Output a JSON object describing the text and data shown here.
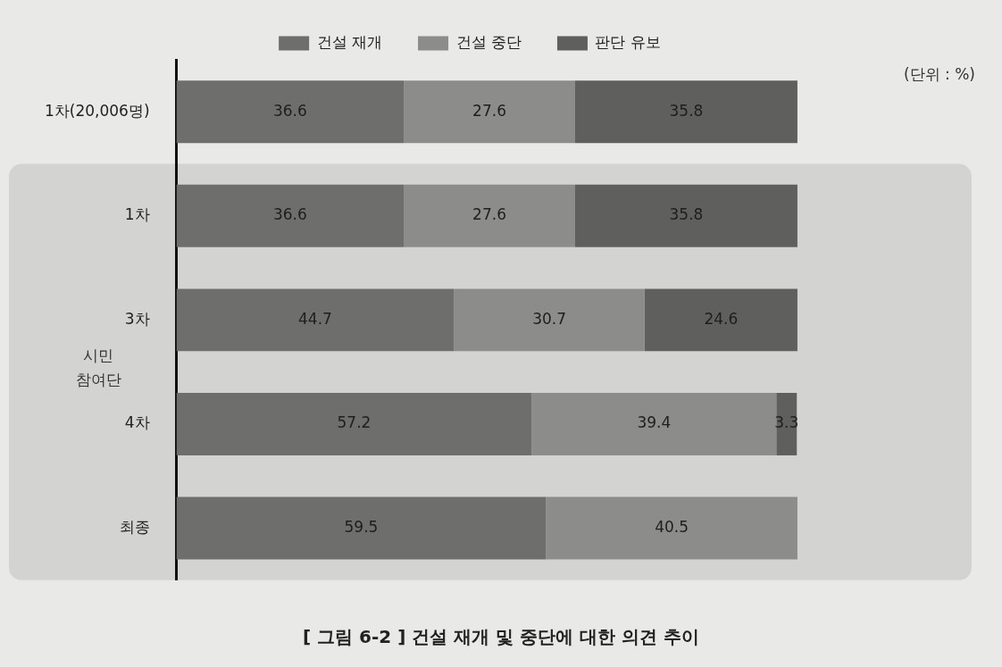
{
  "chart_data": {
    "type": "bar",
    "orientation": "horizontal",
    "stacked": true,
    "title": "[ 그림 6-2 ] 건설 재개 및 중단에 대한 의견 추이",
    "categories": [
      "1차(20,006명)",
      "1차",
      "3차",
      "4차",
      "최종"
    ],
    "series": [
      {
        "name": "건설 재개",
        "color": "#6e6e6c",
        "values": [
          36.6,
          36.6,
          44.7,
          57.2,
          59.5
        ]
      },
      {
        "name": "건설 중단",
        "color": "#8c8c8a",
        "values": [
          27.6,
          27.6,
          30.7,
          39.4,
          40.5
        ]
      },
      {
        "name": "판단 유보",
        "color": "#5f5f5d",
        "values": [
          35.8,
          35.8,
          24.6,
          3.3,
          null
        ]
      }
    ],
    "data_labels": true,
    "legend": "top",
    "bands": [
      {
        "axis": "y",
        "from": "1차",
        "to": "최종",
        "label": "시민 참여단",
        "color": "#d3d3d1"
      }
    ],
    "annotations": [
      "(단위 : %)"
    ]
  }
}
